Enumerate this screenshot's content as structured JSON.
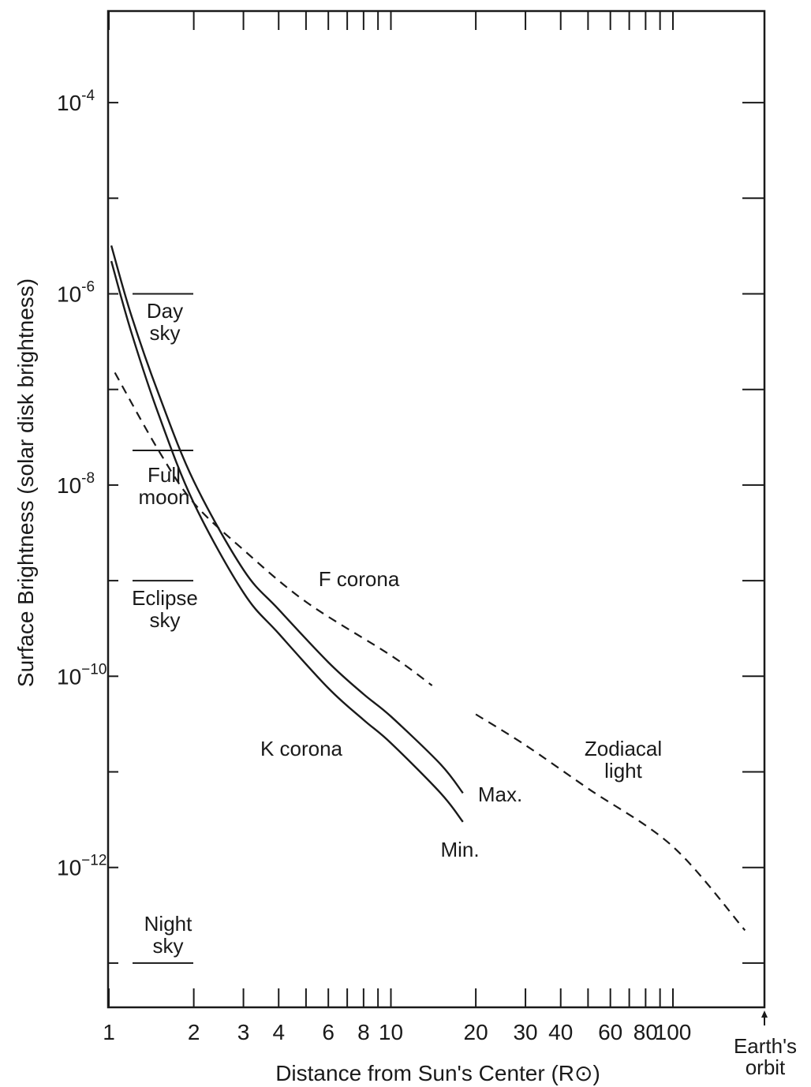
{
  "chart_data": {
    "type": "line",
    "xlabel": "Distance from Sun's Center (R⊙)",
    "ylabel": "Surface Brightness (solar disk brightness)",
    "xscale": "log",
    "yscale": "log",
    "xlim": [
      1,
      200
    ],
    "ylim": [
      1e-13,
      0.001
    ],
    "x_ticks": [
      {
        "value": 1,
        "label": "1"
      },
      {
        "value": 2,
        "label": "2"
      },
      {
        "value": 3,
        "label": "3"
      },
      {
        "value": 4,
        "label": "4"
      },
      {
        "value": 6,
        "label": "6"
      },
      {
        "value": 8,
        "label": "8"
      },
      {
        "value": 10,
        "label": "10"
      },
      {
        "value": 20,
        "label": "20"
      },
      {
        "value": 30,
        "label": "30"
      },
      {
        "value": 40,
        "label": "40"
      },
      {
        "value": 60,
        "label": "60"
      },
      {
        "value": 80,
        "label": "80"
      },
      {
        "value": 100,
        "label": "100"
      }
    ],
    "y_ticks": [
      {
        "exp": -4,
        "label": "10",
        "sup": "-4"
      },
      {
        "exp": -6,
        "label": "10",
        "sup": "-6"
      },
      {
        "exp": -8,
        "label": "10",
        "sup": "-8"
      },
      {
        "exp": -10,
        "label": "10",
        "sup": "−10"
      },
      {
        "exp": -12,
        "label": "10",
        "sup": "−12"
      }
    ],
    "series": [
      {
        "name": "Max.",
        "style": "solid",
        "x": [
          1.02,
          1.2,
          1.5,
          2,
          3,
          4,
          6,
          8,
          10,
          15,
          18
        ],
        "y": [
          3.2e-06,
          6e-07,
          9e-08,
          1.1e-08,
          1.3e-09,
          5e-10,
          1.4e-10,
          6.5e-11,
          3.8e-11,
          1.2e-11,
          6e-12
        ]
      },
      {
        "name": "Min.",
        "style": "solid",
        "x": [
          1.02,
          1.2,
          1.5,
          2,
          3,
          4,
          6,
          8,
          10,
          15,
          18
        ],
        "y": [
          2.2e-06,
          4e-07,
          5.5e-08,
          6.5e-09,
          7.5e-10,
          2.8e-10,
          7.5e-11,
          3.5e-11,
          2e-11,
          6e-12,
          3e-12
        ]
      },
      {
        "name": "F corona",
        "style": "dashed",
        "x": [
          1.05,
          1.5,
          2,
          3,
          5,
          10,
          14
        ],
        "y": [
          1.5e-07,
          2.3e-08,
          6.5e-09,
          2.1e-09,
          6e-10,
          1.65e-10,
          8e-11
        ]
      },
      {
        "name": "Zodiacal light",
        "style": "dashed",
        "x": [
          20,
          30,
          50,
          100,
          180
        ],
        "y": [
          4e-11,
          1.9e-11,
          6.7e-12,
          1.65e-12,
          2.2e-13
        ]
      }
    ],
    "reference_levels": [
      {
        "name": "Day sky",
        "lines": [
          "Day",
          "sky"
        ],
        "value": 1e-06
      },
      {
        "name": "Full moon",
        "lines": [
          "Full",
          "moon"
        ],
        "value": 2.3e-08
      },
      {
        "name": "Eclipse sky",
        "lines": [
          "Eclipse",
          "sky"
        ],
        "value": 1e-09
      },
      {
        "name": "Night sky",
        "lines": [
          "Night",
          "sky"
        ],
        "value": 1e-13
      }
    ],
    "annotations": {
      "f_corona": "F corona",
      "k_corona": "K corona",
      "zodiacal": [
        "Zodiacal",
        "light"
      ],
      "max": "Max.",
      "min": "Min.",
      "earth_orbit": [
        "Earth's",
        "orbit"
      ]
    },
    "earth_orbit_x": 215,
    "grid": false,
    "legend": "none"
  }
}
